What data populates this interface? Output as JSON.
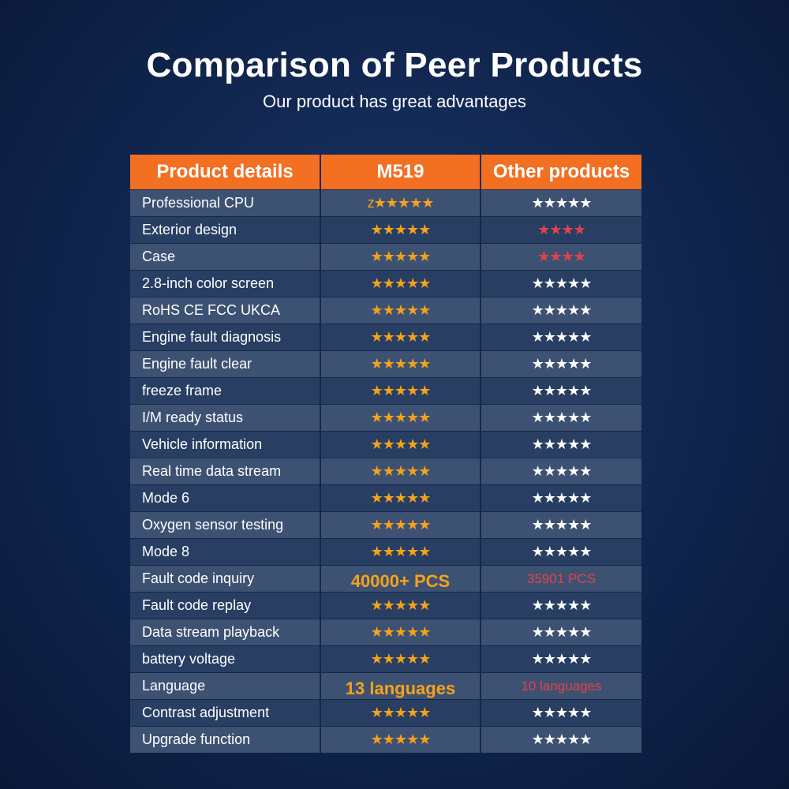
{
  "title": "Comparison of Peer Products",
  "subtitle": "Our product has great advantages",
  "colors": {
    "header_bg": "#f36f21",
    "row_light": "#3d5272",
    "row_dark": "#283f63",
    "star_orange": "#f5a21b",
    "star_red": "#e8404a",
    "star_white": "#ffffff"
  },
  "headers": [
    "Product details",
    "M519",
    "Other products"
  ],
  "rows": [
    {
      "label": "Professional CPU",
      "m519": "z★★★★★",
      "m519_style": "stars-orange",
      "other": "★★★★★",
      "other_style": "stars-white"
    },
    {
      "label": "Exterior design",
      "m519": "★★★★★",
      "m519_style": "stars-orange",
      "other": "★★★★",
      "other_style": "stars-red"
    },
    {
      "label": "Case",
      "m519": "★★★★★",
      "m519_style": "stars-orange",
      "other": "★★★★",
      "other_style": "stars-red"
    },
    {
      "label": "2.8-inch color screen",
      "m519": "★★★★★",
      "m519_style": "stars-orange",
      "other": "★★★★★",
      "other_style": "stars-white"
    },
    {
      "label": "RoHS CE FCC UKCA",
      "m519": "★★★★★",
      "m519_style": "stars-orange",
      "other": "★★★★★",
      "other_style": "stars-white"
    },
    {
      "label": "Engine fault diagnosis",
      "m519": "★★★★★",
      "m519_style": "stars-orange",
      "other": "★★★★★",
      "other_style": "stars-white"
    },
    {
      "label": "Engine fault clear",
      "m519": "★★★★★",
      "m519_style": "stars-orange",
      "other": "★★★★★",
      "other_style": "stars-white"
    },
    {
      "label": "freeze frame",
      "m519": "★★★★★",
      "m519_style": "stars-orange",
      "other": "★★★★★",
      "other_style": "stars-white"
    },
    {
      "label": "I/M ready status",
      "m519": "★★★★★",
      "m519_style": "stars-orange",
      "other": "★★★★★",
      "other_style": "stars-white"
    },
    {
      "label": "Vehicle information",
      "m519": "★★★★★",
      "m519_style": "stars-orange",
      "other": "★★★★★",
      "other_style": "stars-white"
    },
    {
      "label": "Real time data stream",
      "m519": "★★★★★",
      "m519_style": "stars-orange",
      "other": "★★★★★",
      "other_style": "stars-white"
    },
    {
      "label": "Mode 6",
      "m519": "★★★★★",
      "m519_style": "stars-orange",
      "other": "★★★★★",
      "other_style": "stars-white"
    },
    {
      "label": "Oxygen sensor testing",
      "m519": "★★★★★",
      "m519_style": "stars-orange",
      "other": "★★★★★",
      "other_style": "stars-white"
    },
    {
      "label": "Mode 8",
      "m519": "★★★★★",
      "m519_style": "stars-orange",
      "other": "★★★★★",
      "other_style": "stars-white"
    },
    {
      "label": "Fault code inquiry",
      "m519": "40000+ PCS",
      "m519_style": "big-orange",
      "other": "35901 PCS",
      "other_style": "small-red"
    },
    {
      "label": "Fault code replay",
      "m519": "★★★★★",
      "m519_style": "stars-orange",
      "other": "★★★★★",
      "other_style": "stars-white"
    },
    {
      "label": "Data stream playback",
      "m519": "★★★★★",
      "m519_style": "stars-orange",
      "other": "★★★★★",
      "other_style": "stars-white"
    },
    {
      "label": "battery voltage",
      "m519": "★★★★★",
      "m519_style": "stars-orange",
      "other": "★★★★★",
      "other_style": "stars-white"
    },
    {
      "label": "Language",
      "m519": "13 languages",
      "m519_style": "big-orange",
      "other": "10 languages",
      "other_style": "small-red"
    },
    {
      "label": "Contrast adjustment",
      "m519": "★★★★★",
      "m519_style": "stars-orange",
      "other": "★★★★★",
      "other_style": "stars-white"
    },
    {
      "label": "Upgrade function",
      "m519": "★★★★★",
      "m519_style": "stars-orange",
      "other": "★★★★★",
      "other_style": "stars-white"
    }
  ]
}
